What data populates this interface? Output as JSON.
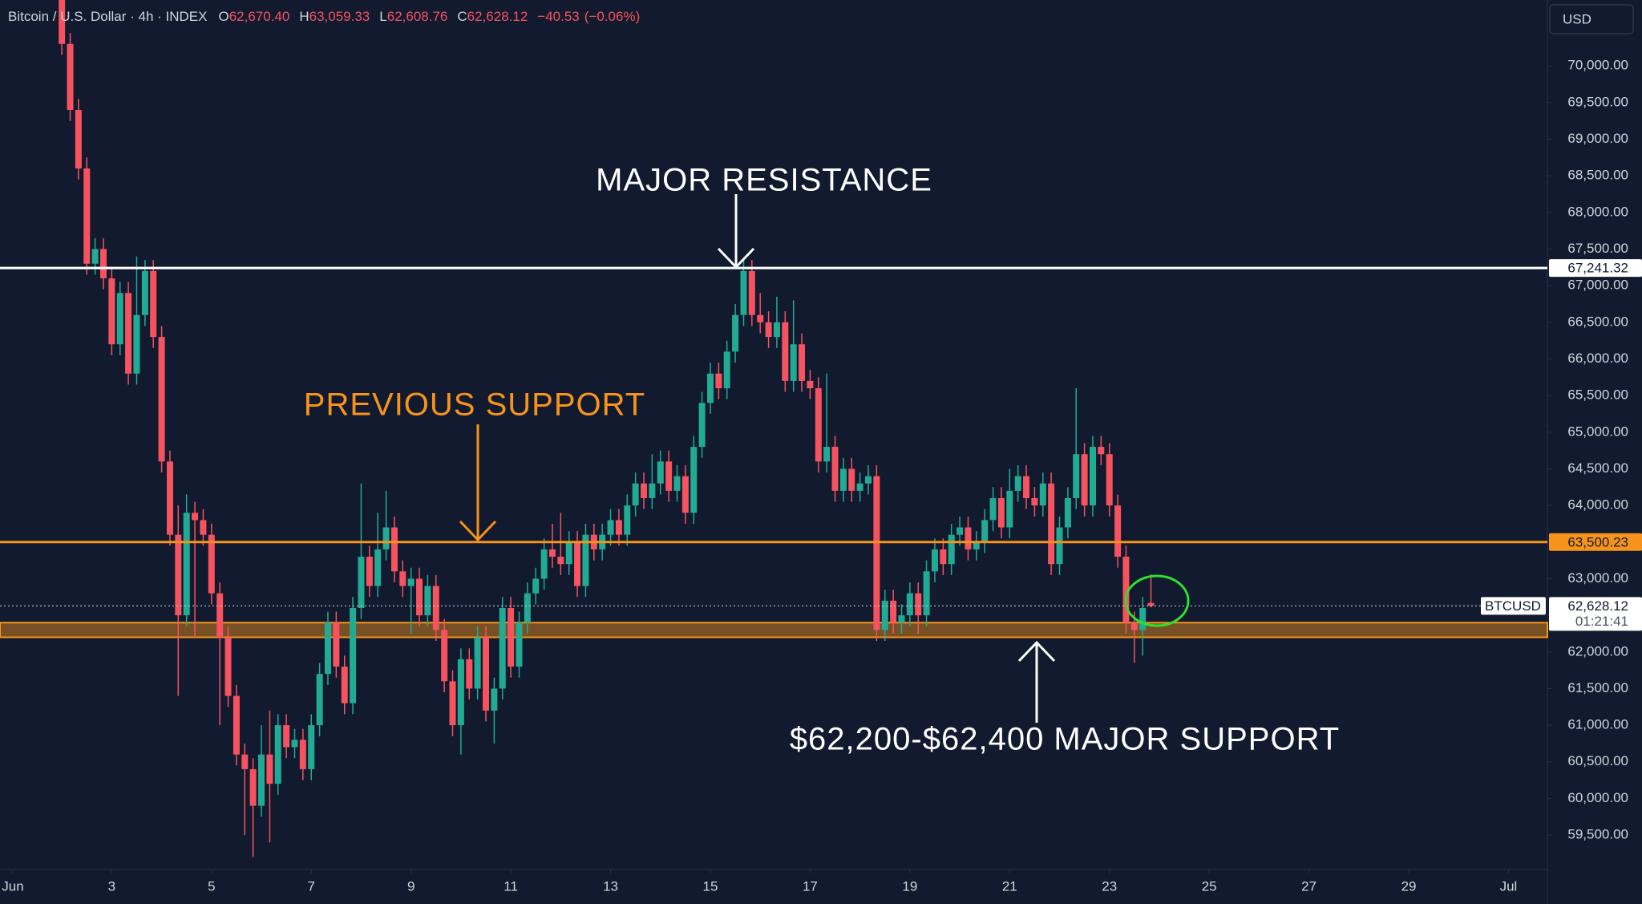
{
  "chart_data": {
    "type": "candlestick",
    "title": "Bitcoin / U.S. Dollar · 4h · INDEX",
    "ohlc_legend": [
      {
        "key": "O",
        "value": 62670.4,
        "label": "62,670.40"
      },
      {
        "key": "H",
        "value": 63059.33,
        "label": "63,059.33"
      },
      {
        "key": "L",
        "value": 62608.76,
        "label": "62,608.76"
      },
      {
        "key": "C",
        "value": 62628.12,
        "label": "62,628.12"
      }
    ],
    "change": {
      "value": -40.53,
      "label": "−40.53"
    },
    "change_pct": {
      "value": -0.06,
      "label": "(−0.06%)"
    },
    "currency": "USD",
    "up_color": "#22ab94",
    "down_color": "#f7525f",
    "x": [
      2,
      2.167,
      2.333,
      2.5,
      2.667,
      2.833,
      3,
      3.167,
      3.333,
      3.5,
      3.667,
      3.833,
      4,
      4.167,
      4.333,
      4.5,
      4.667,
      4.833,
      5,
      5.167,
      5.333,
      5.5,
      5.667,
      5.833,
      6,
      6.167,
      6.333,
      6.5,
      6.667,
      6.833,
      7,
      7.167,
      7.333,
      7.5,
      7.667,
      7.833,
      8,
      8.167,
      8.333,
      8.5,
      8.667,
      8.833,
      9,
      9.167,
      9.333,
      9.5,
      9.667,
      9.833,
      10,
      10.167,
      10.333,
      10.5,
      10.667,
      10.833,
      11,
      11.167,
      11.333,
      11.5,
      11.667,
      11.833,
      12,
      12.167,
      12.333,
      12.5,
      12.667,
      12.833,
      13,
      13.167,
      13.333,
      13.5,
      13.667,
      13.833,
      14,
      14.167,
      14.333,
      14.5,
      14.667,
      14.833,
      15,
      15.167,
      15.333,
      15.5,
      15.667,
      15.833,
      16,
      16.167,
      16.333,
      16.5,
      16.667,
      16.833,
      17,
      17.167,
      17.333,
      17.5,
      17.667,
      17.833,
      18,
      18.167,
      18.333,
      18.5,
      18.667,
      18.833,
      19,
      19.167,
      19.333,
      19.5,
      19.667,
      19.833,
      20,
      20.167,
      20.333,
      20.5,
      20.667,
      20.833,
      21,
      21.167,
      21.333,
      21.5,
      21.667,
      21.833,
      22,
      22.167,
      22.333,
      22.5,
      22.667,
      22.833,
      23,
      23.167,
      23.333,
      23.5,
      23.667,
      23.833
    ],
    "open": [
      70900,
      70300,
      69400,
      68600,
      67300,
      67500,
      67100,
      66200,
      66900,
      65800,
      66600,
      67200,
      66300,
      64600,
      63600,
      62500,
      63900,
      63800,
      63600,
      62800,
      62200,
      61400,
      60600,
      60400,
      59900,
      60600,
      60200,
      61000,
      60700,
      60800,
      60400,
      61000,
      61700,
      62400,
      61800,
      61300,
      62600,
      63300,
      62900,
      63400,
      63700,
      63100,
      62900,
      63000,
      62500,
      62900,
      62300,
      61600,
      61000,
      61900,
      61500,
      62200,
      61200,
      61500,
      62600,
      61800,
      62400,
      62800,
      63000,
      63400,
      63300,
      63200,
      63500,
      62900,
      63600,
      63400,
      63600,
      63800,
      63600,
      64000,
      64300,
      64100,
      64300,
      64600,
      64200,
      64400,
      63900,
      64800,
      65400,
      65800,
      65600,
      66100,
      66600,
      67200,
      66600,
      66500,
      66300,
      66500,
      65700,
      66200,
      65700,
      65600,
      64600,
      64800,
      64200,
      64500,
      64200,
      64300,
      64400,
      62300,
      62700,
      62400,
      62500,
      62800,
      62500,
      63100,
      63400,
      63200,
      63600,
      63700,
      63400,
      63500,
      63800,
      64100,
      63700,
      64200,
      64400,
      64100,
      64000,
      64300,
      63200,
      63700,
      64100,
      64700,
      64000,
      64800,
      64700,
      64000,
      63300,
      62400,
      62300,
      62670.4
    ],
    "high": [
      71050,
      70450,
      69550,
      68750,
      67650,
      67650,
      67250,
      67050,
      67050,
      67400,
      67350,
      67350,
      66450,
      64750,
      64000,
      64150,
      64050,
      63950,
      63750,
      62950,
      62350,
      61550,
      60750,
      60550,
      61000,
      61200,
      61150,
      61150,
      60950,
      60950,
      61150,
      61850,
      62550,
      62550,
      61950,
      62750,
      64300,
      63450,
      63900,
      64200,
      63850,
      63250,
      63150,
      63150,
      63050,
      63050,
      62450,
      61750,
      62050,
      62050,
      62350,
      62350,
      61650,
      62750,
      62750,
      62550,
      62950,
      63150,
      63550,
      63750,
      63900,
      63650,
      63650,
      63750,
      63750,
      63750,
      63950,
      63950,
      64150,
      64450,
      64450,
      64700,
      64750,
      64750,
      64550,
      64550,
      64950,
      65550,
      65950,
      65950,
      66250,
      66750,
      67350,
      67350,
      66900,
      66650,
      66850,
      66650,
      66800,
      66350,
      65850,
      65750,
      65800,
      64950,
      64650,
      64650,
      64450,
      64550,
      64550,
      62850,
      62850,
      62650,
      62950,
      62950,
      63250,
      63550,
      63550,
      63750,
      63850,
      63850,
      63650,
      63950,
      64250,
      64250,
      64500,
      64550,
      64550,
      64250,
      64450,
      64450,
      63850,
      64250,
      65600,
      64850,
      64950,
      64950,
      64850,
      64150,
      63450,
      62550,
      62750,
      63059.33
    ],
    "low": [
      70150,
      69250,
      68450,
      67150,
      67150,
      66950,
      66050,
      66050,
      65650,
      65650,
      66450,
      66150,
      64450,
      63450,
      61400,
      62350,
      62200,
      63450,
      62650,
      61000,
      61250,
      60450,
      59500,
      59200,
      59750,
      59400,
      60050,
      60550,
      60550,
      60250,
      60250,
      60850,
      61550,
      61650,
      61150,
      61150,
      62450,
      62750,
      62750,
      63250,
      62950,
      62750,
      62250,
      62350,
      62350,
      62150,
      61450,
      60850,
      60600,
      61350,
      61350,
      61050,
      60750,
      61350,
      61650,
      61650,
      62250,
      62650,
      62850,
      63150,
      63050,
      63050,
      62750,
      62750,
      63250,
      63250,
      63450,
      63450,
      63450,
      63850,
      63950,
      63950,
      64150,
      64050,
      64050,
      63750,
      63750,
      64650,
      65250,
      65450,
      65450,
      65950,
      66450,
      66450,
      66350,
      66150,
      66150,
      65550,
      65550,
      65550,
      65450,
      64450,
      64450,
      64050,
      64050,
      64050,
      64050,
      64150,
      62150,
      62150,
      62250,
      62250,
      62350,
      62250,
      62350,
      62950,
      63050,
      63050,
      63450,
      63250,
      63250,
      63350,
      63650,
      63550,
      63550,
      64050,
      63950,
      63850,
      63850,
      63050,
      63050,
      63550,
      63950,
      63850,
      63850,
      64550,
      63850,
      63150,
      62250,
      61850,
      61950,
      62608.76
    ],
    "close": [
      70300,
      69400,
      68600,
      67300,
      67500,
      67100,
      66200,
      66900,
      65800,
      66600,
      67200,
      66300,
      64600,
      63600,
      62500,
      63900,
      63800,
      63600,
      62800,
      62200,
      61400,
      60600,
      60400,
      59900,
      60600,
      60200,
      61000,
      60700,
      60800,
      60400,
      61000,
      61700,
      62400,
      61800,
      61300,
      62600,
      63300,
      62900,
      63400,
      63700,
      63100,
      62900,
      63000,
      62500,
      62900,
      62300,
      61600,
      61000,
      61900,
      61500,
      62200,
      61200,
      61500,
      62600,
      61800,
      62400,
      62800,
      63000,
      63400,
      63300,
      63200,
      63500,
      62900,
      63600,
      63400,
      63600,
      63800,
      63600,
      64000,
      64300,
      64100,
      64300,
      64600,
      64200,
      64400,
      63900,
      64800,
      65400,
      65800,
      65600,
      66100,
      66600,
      67200,
      66600,
      66500,
      66300,
      66500,
      65700,
      66200,
      65700,
      65600,
      64600,
      64800,
      64200,
      64500,
      64200,
      64300,
      64400,
      62300,
      62700,
      62400,
      62500,
      62800,
      62500,
      63100,
      63400,
      63200,
      63600,
      63700,
      63400,
      63500,
      63800,
      64100,
      63700,
      64200,
      64400,
      64100,
      64000,
      64300,
      63200,
      63700,
      64100,
      64700,
      64000,
      64800,
      64700,
      64000,
      63300,
      62400,
      62300,
      62600,
      62628.12
    ],
    "xlim": [
      0.76,
      31.78
    ],
    "xticks": [
      {
        "value": 1,
        "label": "Jun"
      },
      3,
      5,
      7,
      9,
      11,
      13,
      15,
      17,
      19,
      21,
      23,
      25,
      27,
      29,
      {
        "value": 31,
        "label": "Jul"
      }
    ],
    "ylim": [
      59030,
      70900
    ],
    "yticks": [
      {
        "value": 59500,
        "label": "59,500.00"
      },
      {
        "value": 60000,
        "label": "60,000.00"
      },
      {
        "value": 60500,
        "label": "60,500.00"
      },
      {
        "value": 61000,
        "label": "61,000.00"
      },
      {
        "value": 61500,
        "label": "61,500.00"
      },
      {
        "value": 62000,
        "label": "62,000.00"
      },
      {
        "value": 62500,
        "label": "62,500.00"
      },
      {
        "value": 63000,
        "label": "63,000.00"
      },
      {
        "value": 63500,
        "label": "63,500.00"
      },
      {
        "value": 64000,
        "label": "64,000.00"
      },
      {
        "value": 64500,
        "label": "64,500.00"
      },
      {
        "value": 65000,
        "label": "65,000.00"
      },
      {
        "value": 65500,
        "label": "65,500.00"
      },
      {
        "value": 66000,
        "label": "66,000.00"
      },
      {
        "value": 66500,
        "label": "66,500.00"
      },
      {
        "value": 67000,
        "label": "67,000.00"
      },
      {
        "value": 67500,
        "label": "67,500.00"
      },
      {
        "value": 68000,
        "label": "68,000.00"
      },
      {
        "value": 68500,
        "label": "68,500.00"
      },
      {
        "value": 69000,
        "label": "69,000.00"
      },
      {
        "value": 69500,
        "label": "69,500.00"
      },
      {
        "value": 70000,
        "label": "70,000.00"
      }
    ],
    "grid": false,
    "levels": [
      {
        "value": 67241.32,
        "label": "67,241.32",
        "color": "#ffffff"
      },
      {
        "value": 63500.23,
        "label": "63,500.23",
        "color": "#f7931a"
      }
    ],
    "zone": {
      "low": 62200,
      "high": 62400,
      "color": "#f7931a"
    },
    "last_price": {
      "value": 62628.12,
      "label": "62,628.12",
      "countdown": "01:21:41",
      "symbol": "BTCUSD"
    },
    "annotations": {
      "resistance": "MAJOR RESISTANCE",
      "previous_support": "PREVIOUS SUPPORT",
      "support": "$62,200-$62,400 MAJOR SUPPORT"
    }
  }
}
